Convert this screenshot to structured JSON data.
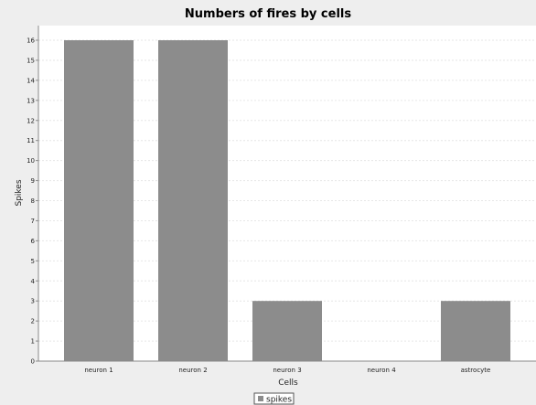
{
  "chart_data": {
    "type": "bar",
    "title": "Numbers of fires by cells",
    "xlabel": "Cells",
    "ylabel": "Spikes",
    "categories": [
      "neuron 1",
      "neuron 2",
      "neuron 3",
      "neuron 4",
      "astrocyte"
    ],
    "series": [
      {
        "name": "spikes",
        "values": [
          16,
          16,
          3,
          0,
          3
        ],
        "color": "#8c8c8c"
      }
    ],
    "ylim": [
      0,
      16
    ],
    "yticks": [
      0,
      1,
      2,
      3,
      4,
      5,
      6,
      7,
      8,
      9,
      10,
      11,
      12,
      13,
      14,
      15,
      16
    ],
    "grid": true,
    "legend": {
      "position": "bottom-center"
    },
    "colors": {
      "background": "#eeeeee",
      "plot_background": "#ffffff",
      "bar": "#8c8c8c",
      "grid": "#e6e6e6"
    }
  }
}
